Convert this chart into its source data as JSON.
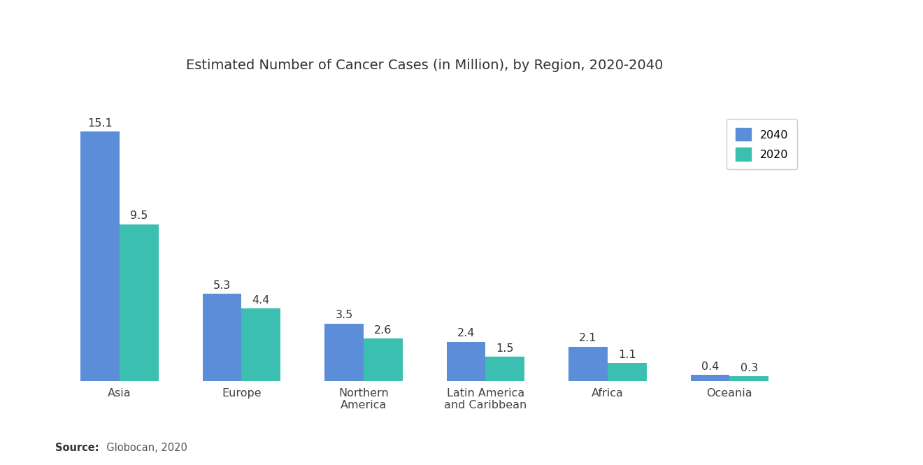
{
  "title": "Estimated Number of Cancer Cases (in Million), by Region, 2020-2040",
  "categories": [
    "Asia",
    "Europe",
    "Northern\nAmerica",
    "Latin America\nand Caribbean",
    "Africa",
    "Oceania"
  ],
  "values_2040": [
    15.1,
    5.3,
    3.5,
    2.4,
    2.1,
    0.4
  ],
  "values_2020": [
    9.5,
    4.4,
    2.6,
    1.5,
    1.1,
    0.3
  ],
  "color_2040": "#5B8DD9",
  "color_2020": "#3BBFB0",
  "background_color": "#FFFFFF",
  "title_fontsize": 14,
  "label_fontsize": 11.5,
  "tick_fontsize": 11.5,
  "legend_labels": [
    "2040",
    "2020"
  ],
  "source_bold": "Source:",
  "source_rest": "  Globocan, 2020",
  "ylim": [
    0,
    18
  ],
  "bar_width": 0.32
}
